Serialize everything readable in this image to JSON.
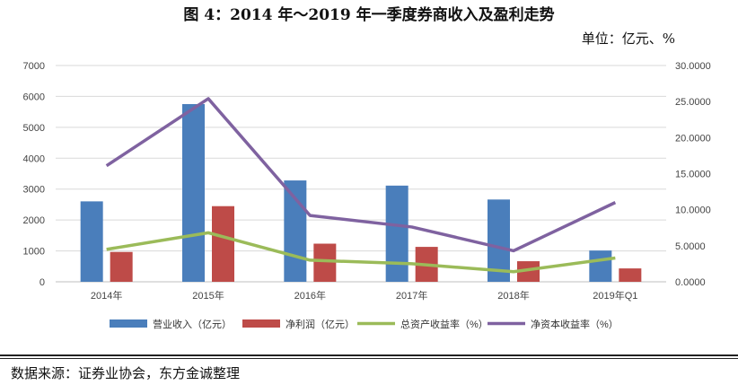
{
  "title": "图 4：2014 年～2019 年一季度券商收入及盈利走势",
  "unit": "单位：亿元、%",
  "source": "数据来源：证券业协会，东方金诚整理",
  "chart_data": {
    "type": "bar",
    "categories": [
      "2014年",
      "2015年",
      "2016年",
      "2017年",
      "2018年",
      "2019年Q1"
    ],
    "series": [
      {
        "name": "营业收入（亿元）",
        "axis": "left",
        "kind": "bar",
        "color": "#4a7ebb",
        "values": [
          2603,
          5752,
          3280,
          3113,
          2663,
          1012
        ]
      },
      {
        "name": "净利润（亿元）",
        "axis": "left",
        "kind": "bar",
        "color": "#be4b48",
        "values": [
          966,
          2448,
          1234,
          1130,
          666,
          433
        ]
      },
      {
        "name": "总资产收益率（%）",
        "axis": "right",
        "kind": "line",
        "color": "#9bbb59",
        "values": [
          4.5,
          6.8,
          3.0,
          2.5,
          1.4,
          3.3
        ]
      },
      {
        "name": "净资本收益率（%）",
        "axis": "right",
        "kind": "line",
        "color": "#7f62a0",
        "values": [
          16.1,
          25.4,
          9.2,
          7.6,
          4.3,
          11.0
        ]
      }
    ],
    "y_left": {
      "min": 0,
      "max": 7000,
      "step": 1000,
      "ticks": [
        "0",
        "1000",
        "2000",
        "3000",
        "4000",
        "5000",
        "6000",
        "7000"
      ]
    },
    "y_right": {
      "min": 0,
      "max": 30,
      "step": 5,
      "ticks": [
        "0.0000",
        "5.0000",
        "10.0000",
        "15.0000",
        "20.0000",
        "25.0000",
        "30.0000"
      ]
    },
    "grid": true,
    "legend": "bottom"
  }
}
